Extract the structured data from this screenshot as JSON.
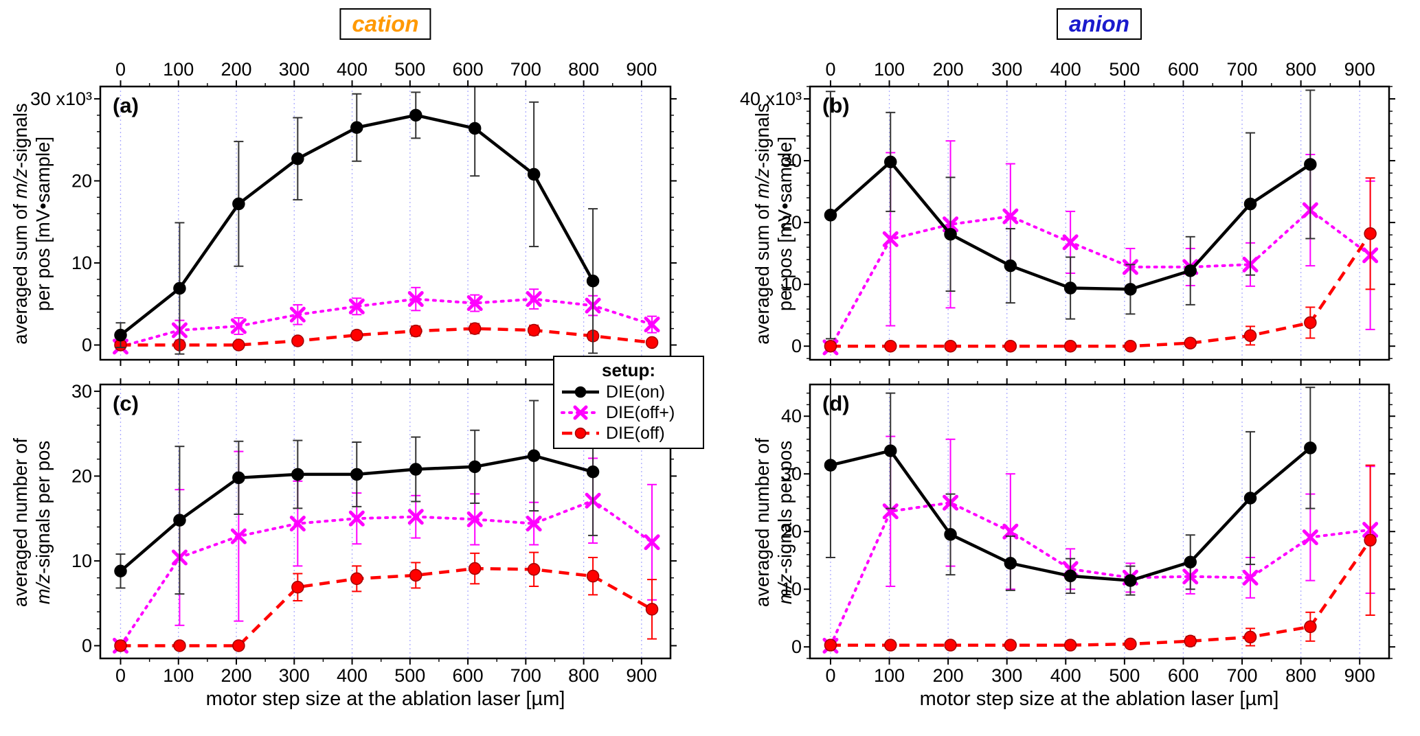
{
  "headers": {
    "left": {
      "label": "cation",
      "color": "#FF9900"
    },
    "right": {
      "label": "anion",
      "color": "#1A1ACD"
    }
  },
  "axes": {
    "x_title": "motor step size at the ablation laser [µm]"
  },
  "legend": {
    "title": "setup:",
    "position": "center-left, straddling panels a and c",
    "items": [
      {
        "label": "DIE(on)",
        "color": "#000000",
        "line": "solid",
        "marker": "circle"
      },
      {
        "label": "DIE(off+)",
        "color": "#FF00FF",
        "line": "dotted",
        "marker": "x"
      },
      {
        "label": "DIE(off)",
        "color": "#FF0000",
        "line": "dashed",
        "marker": "circle"
      }
    ]
  },
  "chart_data": [
    {
      "id": "a",
      "panel_label": "(a)",
      "type": "line",
      "column": "cation",
      "x_label_side": "top",
      "xlim": [
        -35,
        950
      ],
      "ylim": [
        -1.8,
        31.5
      ],
      "x_ticks": [
        0,
        100,
        200,
        300,
        400,
        500,
        600,
        700,
        800,
        900
      ],
      "y_ticks": [
        0,
        10,
        20,
        30
      ],
      "y_exp": "x10³",
      "y_axis_label_lines": [
        "averaged sum of m/z-signals",
        "per pos [mV•sample]"
      ],
      "series": [
        {
          "name": "DIE(on)",
          "color": "#000000",
          "err_color": "#333333",
          "line": "solid",
          "marker": "circle",
          "x": [
            0,
            102,
            204,
            306,
            408,
            510,
            612,
            714,
            816
          ],
          "y": [
            1.2,
            6.9,
            17.2,
            22.7,
            26.5,
            28.0,
            26.4,
            20.8,
            7.8
          ],
          "err": [
            1.5,
            8.0,
            7.6,
            5.0,
            4.1,
            2.8,
            5.8,
            8.8,
            8.8
          ]
        },
        {
          "name": "DIE(off+)",
          "color": "#FF00FF",
          "line": "dotted",
          "marker": "x",
          "x": [
            0,
            102,
            204,
            306,
            408,
            510,
            612,
            714,
            816,
            918
          ],
          "y": [
            -0.2,
            1.8,
            2.3,
            3.7,
            4.7,
            5.6,
            5.1,
            5.6,
            4.8,
            2.5
          ],
          "err": [
            0.3,
            1.2,
            1.0,
            1.2,
            1.0,
            1.4,
            1.0,
            1.2,
            1.2,
            1.0
          ]
        },
        {
          "name": "DIE(off)",
          "color": "#FF0000",
          "line": "dashed",
          "marker": "circle",
          "x": [
            0,
            102,
            204,
            306,
            408,
            510,
            612,
            714,
            816,
            918
          ],
          "y": [
            0.0,
            0.0,
            0.0,
            0.5,
            1.2,
            1.7,
            2.0,
            1.8,
            1.1,
            0.3
          ],
          "err": [
            0.1,
            0.1,
            0.1,
            0.4,
            0.5,
            0.6,
            0.6,
            0.6,
            0.5,
            0.3
          ]
        }
      ]
    },
    {
      "id": "b",
      "panel_label": "(b)",
      "type": "line",
      "column": "anion",
      "x_label_side": "top",
      "xlim": [
        -35,
        950
      ],
      "ylim": [
        -2.2,
        42
      ],
      "x_ticks": [
        0,
        100,
        200,
        300,
        400,
        500,
        600,
        700,
        800,
        900
      ],
      "y_ticks": [
        0,
        10,
        20,
        30,
        40
      ],
      "y_exp": "x10³",
      "y_axis_label_lines": [
        "averaged sum of m/z-signals",
        "per pos [mV•sample]"
      ],
      "series": [
        {
          "name": "DIE(on)",
          "color": "#000000",
          "err_color": "#333333",
          "line": "solid",
          "marker": "circle",
          "x": [
            0,
            102,
            204,
            306,
            408,
            510,
            612,
            714,
            816
          ],
          "y": [
            21.2,
            29.8,
            18.1,
            13.0,
            9.4,
            9.2,
            12.2,
            23.0,
            29.4
          ],
          "err": [
            20.0,
            8.0,
            9.2,
            6.0,
            5.0,
            4.0,
            5.5,
            11.5,
            12.0
          ]
        },
        {
          "name": "DIE(off+)",
          "color": "#FF00FF",
          "line": "dotted",
          "marker": "x",
          "x": [
            0,
            102,
            204,
            306,
            408,
            510,
            612,
            714,
            816,
            918
          ],
          "y": [
            -0.2,
            17.3,
            19.7,
            21.0,
            16.8,
            12.8,
            12.8,
            13.2,
            22.0,
            14.7
          ],
          "err": [
            0.3,
            14.0,
            13.5,
            8.5,
            5.0,
            3.0,
            3.0,
            3.5,
            9.0,
            12.0
          ]
        },
        {
          "name": "DIE(off)",
          "color": "#FF0000",
          "line": "dashed",
          "marker": "circle",
          "x": [
            0,
            102,
            204,
            306,
            408,
            510,
            612,
            714,
            816,
            918
          ],
          "y": [
            0.0,
            0.0,
            0.0,
            0.0,
            0.0,
            0.0,
            0.5,
            1.7,
            3.8,
            18.2
          ],
          "err": [
            0.2,
            0.2,
            0.2,
            0.2,
            0.2,
            0.2,
            0.5,
            1.5,
            2.5,
            9.0
          ]
        }
      ]
    },
    {
      "id": "c",
      "panel_label": "(c)",
      "type": "line",
      "column": "cation",
      "x_label_side": "bottom",
      "xlim": [
        -35,
        950
      ],
      "ylim": [
        -1.5,
        30.8
      ],
      "x_ticks": [
        0,
        100,
        200,
        300,
        400,
        500,
        600,
        700,
        800,
        900
      ],
      "y_ticks": [
        0,
        10,
        20,
        30
      ],
      "y_exp": null,
      "y_axis_label_lines": [
        "averaged number of",
        "m/z-signals per pos"
      ],
      "series": [
        {
          "name": "DIE(on)",
          "color": "#000000",
          "err_color": "#333333",
          "line": "solid",
          "marker": "circle",
          "x": [
            0,
            102,
            204,
            306,
            408,
            510,
            612,
            714,
            816
          ],
          "y": [
            8.8,
            14.8,
            19.8,
            20.2,
            20.2,
            20.8,
            21.1,
            22.4,
            20.5
          ],
          "err": [
            2.0,
            8.7,
            4.3,
            4.0,
            3.8,
            3.8,
            4.3,
            6.5,
            7.5
          ]
        },
        {
          "name": "DIE(off+)",
          "color": "#FF00FF",
          "line": "dotted",
          "marker": "x",
          "x": [
            0,
            102,
            204,
            306,
            408,
            510,
            612,
            714,
            816,
            918
          ],
          "y": [
            0.0,
            10.4,
            12.9,
            14.4,
            15.0,
            15.2,
            14.9,
            14.4,
            17.1,
            12.2
          ],
          "err": [
            0.2,
            8.0,
            10.0,
            5.0,
            3.0,
            2.5,
            3.0,
            2.5,
            5.0,
            6.8
          ]
        },
        {
          "name": "DIE(off)",
          "color": "#FF0000",
          "line": "dashed",
          "marker": "circle",
          "x": [
            0,
            102,
            204,
            306,
            408,
            510,
            612,
            714,
            816,
            918
          ],
          "y": [
            0.0,
            0.0,
            0.0,
            6.9,
            7.9,
            8.3,
            9.1,
            9.0,
            8.2,
            4.3
          ],
          "err": [
            0.1,
            0.1,
            0.1,
            1.6,
            1.5,
            1.5,
            1.8,
            2.0,
            2.2,
            3.5
          ]
        }
      ]
    },
    {
      "id": "d",
      "panel_label": "(d)",
      "type": "line",
      "column": "anion",
      "x_label_side": "bottom",
      "xlim": [
        -35,
        950
      ],
      "ylim": [
        -2,
        45.5
      ],
      "x_ticks": [
        0,
        100,
        200,
        300,
        400,
        500,
        600,
        700,
        800,
        900
      ],
      "y_ticks": [
        0,
        10,
        20,
        30,
        40
      ],
      "y_exp": null,
      "y_axis_label_lines": [
        "averaged number of",
        "m/z-signals per pos"
      ],
      "series": [
        {
          "name": "DIE(on)",
          "color": "#000000",
          "err_color": "#333333",
          "line": "solid",
          "marker": "circle",
          "x": [
            0,
            102,
            204,
            306,
            408,
            510,
            612,
            714,
            816
          ],
          "y": [
            31.5,
            34.0,
            19.5,
            14.5,
            12.3,
            11.5,
            14.7,
            25.8,
            34.5
          ],
          "err": [
            16.0,
            10.0,
            7.0,
            4.7,
            3.0,
            2.5,
            4.7,
            11.5,
            10.5
          ]
        },
        {
          "name": "DIE(off+)",
          "color": "#FF00FF",
          "line": "dotted",
          "marker": "x",
          "x": [
            0,
            102,
            204,
            306,
            408,
            510,
            612,
            714,
            816,
            918
          ],
          "y": [
            0.2,
            23.5,
            25.0,
            20.0,
            13.5,
            12.0,
            12.2,
            12.0,
            19.0,
            20.3
          ],
          "err": [
            0.3,
            13.0,
            11.0,
            10.0,
            3.5,
            2.5,
            3.0,
            3.5,
            7.5,
            11.0
          ]
        },
        {
          "name": "DIE(off)",
          "color": "#FF0000",
          "line": "dashed",
          "marker": "circle",
          "x": [
            0,
            102,
            204,
            306,
            408,
            510,
            612,
            714,
            816,
            918
          ],
          "y": [
            0.3,
            0.3,
            0.3,
            0.3,
            0.3,
            0.5,
            1.0,
            1.7,
            3.5,
            18.5
          ],
          "err": [
            0.2,
            0.2,
            0.2,
            0.2,
            0.2,
            0.3,
            0.8,
            1.5,
            2.5,
            13.0
          ]
        }
      ]
    }
  ]
}
